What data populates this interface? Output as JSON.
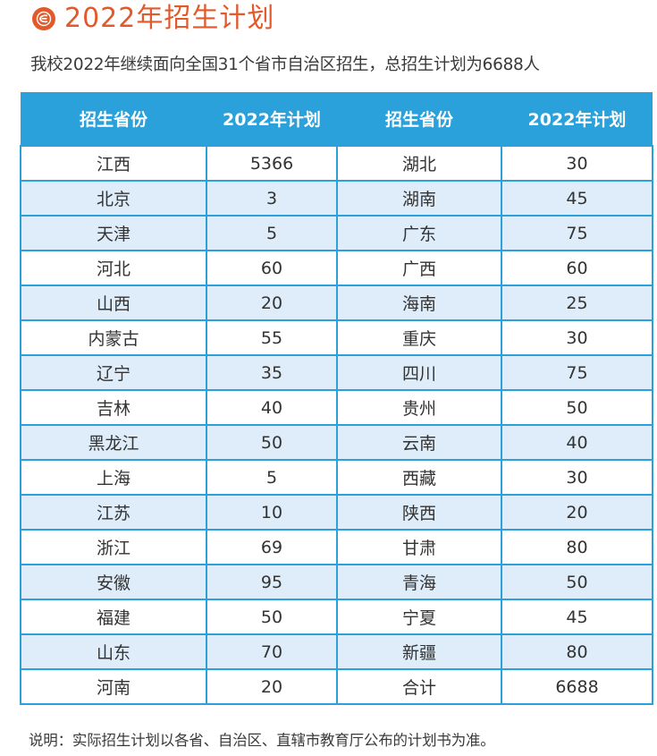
{
  "header": {
    "title": "2022年招生计划",
    "logo_icon": "university-logo-icon",
    "accent_color": "#e25a2b",
    "subtitle": "我校2022年继续面向全国31个省市自治区招生，总招生计划为6688人"
  },
  "table": {
    "header_color": "#2aa1da",
    "stripe_color": "#deedf9",
    "columns": [
      "招生省份",
      "2022年计划",
      "招生省份",
      "2022年计划"
    ],
    "rows": [
      {
        "p1": "江西",
        "v1": "5366",
        "p2": "湖北",
        "v2": "30",
        "shade": "w"
      },
      {
        "p1": "北京",
        "v1": "3",
        "p2": "湖南",
        "v2": "45",
        "shade": "b"
      },
      {
        "p1": "天津",
        "v1": "5",
        "p2": "广东",
        "v2": "75",
        "shade": "b"
      },
      {
        "p1": "河北",
        "v1": "60",
        "p2": "广西",
        "v2": "60",
        "shade": "w"
      },
      {
        "p1": "山西",
        "v1": "20",
        "p2": "海南",
        "v2": "25",
        "shade": "b"
      },
      {
        "p1": "内蒙古",
        "v1": "55",
        "p2": "重庆",
        "v2": "30",
        "shade": "w"
      },
      {
        "p1": "辽宁",
        "v1": "35",
        "p2": "四川",
        "v2": "75",
        "shade": "b"
      },
      {
        "p1": "吉林",
        "v1": "40",
        "p2": "贵州",
        "v2": "50",
        "shade": "w"
      },
      {
        "p1": "黑龙江",
        "v1": "50",
        "p2": "云南",
        "v2": "40",
        "shade": "b"
      },
      {
        "p1": "上海",
        "v1": "5",
        "p2": "西藏",
        "v2": "30",
        "shade": "w"
      },
      {
        "p1": "江苏",
        "v1": "10",
        "p2": "陕西",
        "v2": "20",
        "shade": "b"
      },
      {
        "p1": "浙江",
        "v1": "69",
        "p2": "甘肃",
        "v2": "80",
        "shade": "w"
      },
      {
        "p1": "安徽",
        "v1": "95",
        "p2": "青海",
        "v2": "50",
        "shade": "b"
      },
      {
        "p1": "福建",
        "v1": "50",
        "p2": "宁夏",
        "v2": "45",
        "shade": "w"
      },
      {
        "p1": "山东",
        "v1": "70",
        "p2": "新疆",
        "v2": "80",
        "shade": "b"
      },
      {
        "p1": "河南",
        "v1": "20",
        "p2": "合计",
        "v2": "6688",
        "shade": "w"
      }
    ]
  },
  "footer": {
    "note": "说明：实际招生计划以各省、自治区、直辖市教育厅公布的计划书为准。"
  }
}
